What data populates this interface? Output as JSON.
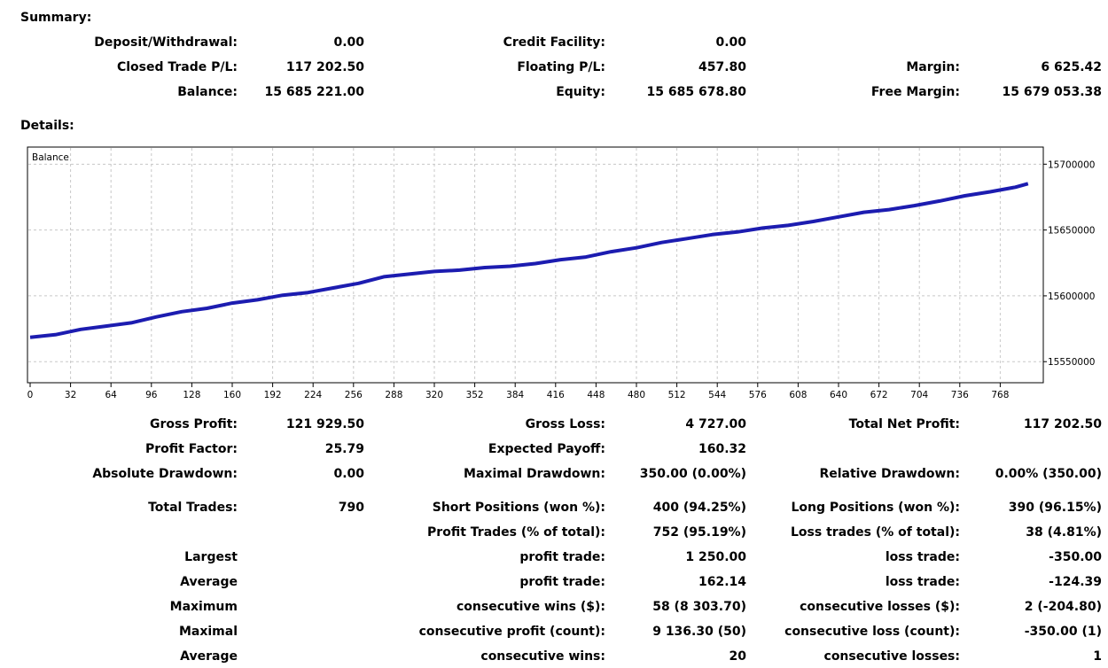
{
  "summary": {
    "title": "Summary:",
    "rows": [
      [
        {
          "label": "Deposit/Withdrawal:",
          "value": "0.00"
        },
        {
          "label": "Credit Facility:",
          "value": "0.00"
        },
        {
          "label": "",
          "value": ""
        }
      ],
      [
        {
          "label": "Closed Trade P/L:",
          "value": "117 202.50"
        },
        {
          "label": "Floating P/L:",
          "value": "457.80"
        },
        {
          "label": "Margin:",
          "value": "6 625.42"
        }
      ],
      [
        {
          "label": "Balance:",
          "value": "15 685 221.00"
        },
        {
          "label": "Equity:",
          "value": "15 685 678.80"
        },
        {
          "label": "Free Margin:",
          "value": "15 679 053.38"
        }
      ]
    ]
  },
  "details": {
    "title": "Details:",
    "rows": [
      [
        {
          "label": "Gross Profit:",
          "value": "121 929.50"
        },
        {
          "label": "Gross Loss:",
          "value": "4 727.00"
        },
        {
          "label": "Total Net Profit:",
          "value": "117 202.50"
        }
      ],
      [
        {
          "label": "Profit Factor:",
          "value": "25.79"
        },
        {
          "label": "Expected Payoff:",
          "value": "160.32"
        },
        {
          "label": "",
          "value": ""
        }
      ],
      [
        {
          "label": "Absolute Drawdown:",
          "value": "0.00"
        },
        {
          "label": "Maximal Drawdown:",
          "value": "350.00 (0.00%)"
        },
        {
          "label": "Relative Drawdown:",
          "value": "0.00% (350.00)"
        }
      ],
      [
        {
          "label": "Total Trades:",
          "value": "790"
        },
        {
          "label": "Short Positions (won %):",
          "value": "400 (94.25%)"
        },
        {
          "label": "Long Positions (won %):",
          "value": "390 (96.15%)"
        }
      ],
      [
        {
          "label": "",
          "value": ""
        },
        {
          "label": "Profit Trades (% of total):",
          "value": "752 (95.19%)"
        },
        {
          "label": "Loss trades (% of total):",
          "value": "38 (4.81%)"
        }
      ],
      [
        {
          "label": "Largest",
          "value": ""
        },
        {
          "label": "profit trade:",
          "value": "1 250.00"
        },
        {
          "label": "loss trade:",
          "value": "-350.00"
        }
      ],
      [
        {
          "label": "Average",
          "value": ""
        },
        {
          "label": "profit trade:",
          "value": "162.14"
        },
        {
          "label": "loss trade:",
          "value": "-124.39"
        }
      ],
      [
        {
          "label": "Maximum",
          "value": ""
        },
        {
          "label": "consecutive wins ($):",
          "value": "58 (8 303.70)"
        },
        {
          "label": "consecutive losses ($):",
          "value": "2 (-204.80)"
        }
      ],
      [
        {
          "label": "Maximal",
          "value": ""
        },
        {
          "label": "consecutive profit (count):",
          "value": "9 136.30 (50)"
        },
        {
          "label": "consecutive loss (count):",
          "value": "-350.00 (1)"
        }
      ],
      [
        {
          "label": "Average",
          "value": ""
        },
        {
          "label": "consecutive wins:",
          "value": "20"
        },
        {
          "label": "consecutive losses:",
          "value": "1"
        }
      ]
    ]
  },
  "chart_data": {
    "type": "line",
    "title": "",
    "legend": "Balance",
    "xlabel": "",
    "ylabel": "",
    "xlim": [
      0,
      800
    ],
    "ylim": [
      15534000,
      15713000
    ],
    "x_ticks": [
      0,
      32,
      64,
      96,
      128,
      160,
      192,
      224,
      256,
      288,
      320,
      352,
      384,
      416,
      448,
      480,
      512,
      544,
      576,
      608,
      640,
      672,
      704,
      736,
      768
    ],
    "y_ticks": [
      15550000,
      15600000,
      15650000,
      15700000
    ],
    "y_tick_labels": [
      "15550000",
      "15600000",
      "15650000",
      "15700000"
    ],
    "grid": true,
    "line_color": "#1c1cb0",
    "series": [
      {
        "name": "Balance",
        "x": [
          0,
          20,
          40,
          60,
          80,
          100,
          120,
          140,
          160,
          180,
          200,
          220,
          240,
          260,
          280,
          300,
          320,
          340,
          360,
          380,
          400,
          420,
          440,
          460,
          480,
          500,
          520,
          540,
          560,
          580,
          600,
          620,
          640,
          660,
          680,
          700,
          720,
          740,
          760,
          780,
          790
        ],
        "y": [
          15568500,
          15570500,
          15574500,
          15577000,
          15579500,
          15584000,
          15588000,
          15590500,
          15594500,
          15597000,
          15600500,
          15602500,
          15606000,
          15609500,
          15614500,
          15616500,
          15618500,
          15619500,
          15621500,
          15622500,
          15624500,
          15627500,
          15629500,
          15633500,
          15636500,
          15640500,
          15643500,
          15646500,
          15648500,
          15651500,
          15653500,
          15656500,
          15660000,
          15663500,
          15665500,
          15668500,
          15672000,
          15676000,
          15679000,
          15682500,
          15685221
        ]
      }
    ]
  }
}
